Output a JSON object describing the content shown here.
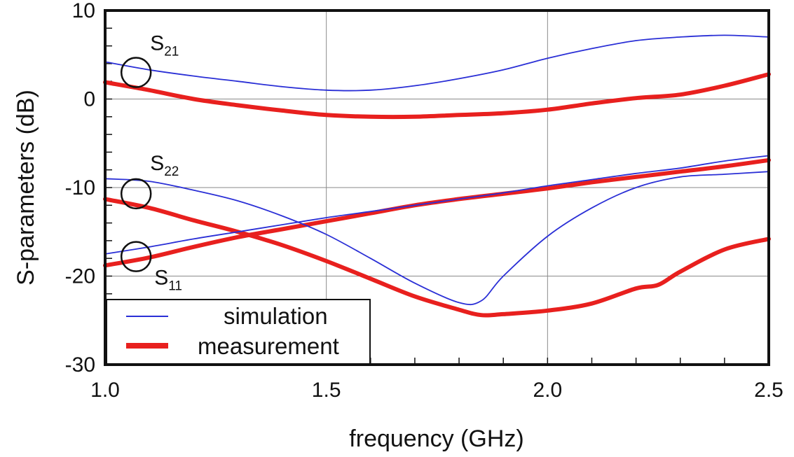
{
  "chart_data": {
    "type": "line",
    "xlabel": "frequency (GHz)",
    "ylabel": "S-parameters (dB)",
    "xlim": [
      1.0,
      2.5
    ],
    "ylim": [
      -30,
      10
    ],
    "xticks": [
      "1.0",
      "1.5",
      "2.0",
      "2.5"
    ],
    "yticks": [
      "10",
      "0",
      "-10",
      "-20",
      "-30"
    ],
    "grid": true,
    "legend_position": "bottom-left",
    "legend": [
      {
        "label": "simulation",
        "color": "#2a2fd6"
      },
      {
        "label": "measurement",
        "color": "#e8201e"
      }
    ],
    "annotations": [
      {
        "label": "S",
        "subscript": "21",
        "x": 1.07,
        "y": 3.0
      },
      {
        "label": "S",
        "subscript": "22",
        "x": 1.07,
        "y": -10.7
      },
      {
        "label": "S",
        "subscript": "11",
        "x": 1.07,
        "y": -17.8
      }
    ],
    "series": [
      {
        "group": "S21",
        "kind": "simulation",
        "color": "#2a2fd6",
        "x": [
          1.0,
          1.1,
          1.2,
          1.3,
          1.4,
          1.5,
          1.6,
          1.7,
          1.8,
          1.9,
          2.0,
          2.1,
          2.2,
          2.3,
          2.4,
          2.5
        ],
        "y": [
          4.2,
          3.3,
          2.6,
          2.0,
          1.4,
          1.0,
          1.0,
          1.5,
          2.3,
          3.3,
          4.6,
          5.7,
          6.6,
          7.0,
          7.2,
          7.0
        ]
      },
      {
        "group": "S21",
        "kind": "measurement",
        "color": "#e8201e",
        "x": [
          1.0,
          1.1,
          1.2,
          1.3,
          1.4,
          1.5,
          1.6,
          1.7,
          1.8,
          1.9,
          2.0,
          2.1,
          2.2,
          2.3,
          2.4,
          2.5
        ],
        "y": [
          1.9,
          1.0,
          0.0,
          -0.7,
          -1.3,
          -1.8,
          -2.0,
          -2.0,
          -1.8,
          -1.6,
          -1.2,
          -0.5,
          0.1,
          0.5,
          1.5,
          2.8
        ]
      },
      {
        "group": "S22",
        "kind": "simulation",
        "color": "#2a2fd6",
        "x": [
          1.0,
          1.1,
          1.2,
          1.3,
          1.4,
          1.5,
          1.6,
          1.7,
          1.8,
          1.85,
          1.9,
          2.0,
          2.1,
          2.2,
          2.3,
          2.4,
          2.5
        ],
        "y": [
          -9.0,
          -9.3,
          -10.3,
          -11.5,
          -13.2,
          -15.3,
          -18.0,
          -20.8,
          -23.0,
          -22.8,
          -20.0,
          -15.5,
          -12.3,
          -10.0,
          -8.8,
          -8.5,
          -8.2
        ]
      },
      {
        "group": "S22",
        "kind": "measurement",
        "color": "#e8201e",
        "x": [
          1.0,
          1.1,
          1.2,
          1.3,
          1.4,
          1.5,
          1.6,
          1.7,
          1.8,
          1.85,
          1.9,
          2.0,
          2.1,
          2.2,
          2.25,
          2.3,
          2.4,
          2.5
        ],
        "y": [
          -11.3,
          -12.3,
          -13.7,
          -15.0,
          -16.5,
          -18.3,
          -20.3,
          -22.3,
          -23.8,
          -24.4,
          -24.3,
          -23.9,
          -23.1,
          -21.4,
          -21.0,
          -19.5,
          -17.0,
          -15.8
        ]
      },
      {
        "group": "S11",
        "kind": "simulation",
        "color": "#2a2fd6",
        "x": [
          1.0,
          1.1,
          1.2,
          1.3,
          1.4,
          1.5,
          1.6,
          1.7,
          1.8,
          1.9,
          2.0,
          2.1,
          2.2,
          2.3,
          2.4,
          2.5
        ],
        "y": [
          -17.5,
          -16.7,
          -15.8,
          -15.0,
          -14.2,
          -13.4,
          -12.7,
          -12.0,
          -11.3,
          -10.6,
          -9.8,
          -9.1,
          -8.4,
          -7.8,
          -7.0,
          -6.4
        ]
      },
      {
        "group": "S11",
        "kind": "measurement",
        "color": "#e8201e",
        "x": [
          1.0,
          1.1,
          1.2,
          1.3,
          1.4,
          1.5,
          1.6,
          1.7,
          1.8,
          1.9,
          2.0,
          2.1,
          2.2,
          2.3,
          2.4,
          2.5
        ],
        "y": [
          -18.8,
          -17.9,
          -16.7,
          -15.6,
          -14.7,
          -13.8,
          -12.9,
          -12.0,
          -11.3,
          -10.7,
          -10.1,
          -9.4,
          -8.8,
          -8.2,
          -7.6,
          -6.9
        ]
      }
    ]
  }
}
